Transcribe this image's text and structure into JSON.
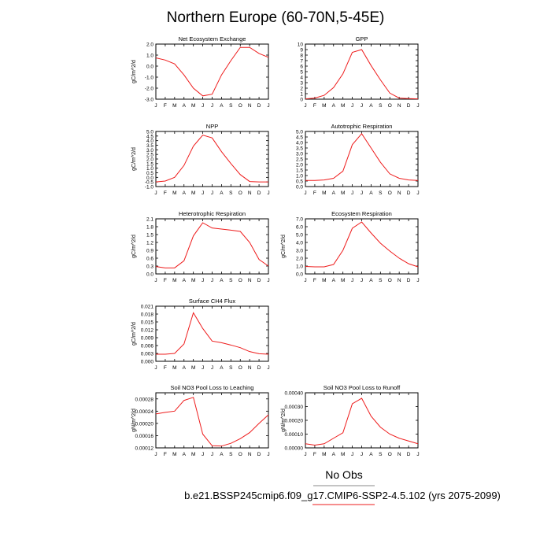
{
  "page": {
    "title": "Northern Europe (60-70N,5-45E)",
    "obs_label": "No Obs",
    "case_label": "b.e21.BSSP245cmip6.f09_g17.CMIP6-SSP2-4.5.102 (yrs 2075-2099)",
    "line_color": "#ee1c1c",
    "months": [
      "J",
      "F",
      "M",
      "A",
      "M",
      "J",
      "J",
      "A",
      "S",
      "O",
      "N",
      "D",
      "J"
    ]
  },
  "chart_data": [
    {
      "type": "line",
      "title": "Net Ecosystem Exchange",
      "ylabel": "gC/m^2/d",
      "ylim": [
        -3.0,
        2.0
      ],
      "yticks": [
        "-3.0",
        "-2.0",
        "-1.0",
        "0.0",
        "1.0",
        "2.0"
      ],
      "values": [
        0.75,
        0.55,
        0.2,
        -0.8,
        -2.0,
        -2.7,
        -2.55,
        -0.8,
        0.5,
        1.7,
        1.7,
        1.15,
        0.8
      ]
    },
    {
      "type": "line",
      "title": "GPP",
      "ylabel": "",
      "ylim": [
        0,
        10
      ],
      "yticks": [
        "0",
        "1",
        "2",
        "3",
        "4",
        "5",
        "6",
        "7",
        "8",
        "9",
        "10"
      ],
      "values": [
        0.05,
        0.2,
        0.7,
        2.1,
        4.6,
        8.5,
        9.0,
        6.1,
        3.5,
        1.1,
        0.2,
        0.1,
        0.05
      ]
    },
    {
      "type": "line",
      "title": "NPP",
      "ylabel": "gC/m^2/d",
      "ylim": [
        -1.0,
        5.0
      ],
      "yticks": [
        "-1.0",
        "-0.5",
        "0.0",
        "0.5",
        "1.0",
        "1.5",
        "2.0",
        "2.5",
        "3.0",
        "3.5",
        "4.0",
        "4.5",
        "5.0"
      ],
      "values": [
        -0.5,
        -0.4,
        0.0,
        1.3,
        3.4,
        4.6,
        4.3,
        2.8,
        1.5,
        0.3,
        -0.45,
        -0.5,
        -0.5
      ]
    },
    {
      "type": "line",
      "title": "Autotrophic Respiration",
      "ylabel": "",
      "ylim": [
        0.0,
        5.0
      ],
      "yticks": [
        "0.0",
        "0.5",
        "1.0",
        "1.5",
        "2.0",
        "2.5",
        "3.0",
        "3.5",
        "4.0",
        "4.5",
        "5.0"
      ],
      "values": [
        0.55,
        0.55,
        0.6,
        0.75,
        1.4,
        3.8,
        4.8,
        3.5,
        2.2,
        1.15,
        0.75,
        0.6,
        0.55
      ]
    },
    {
      "type": "line",
      "title": "Heterotrophic Respiration",
      "ylabel": "gC/m^2/d",
      "ylim": [
        0.0,
        2.1
      ],
      "yticks": [
        "0.0",
        "0.3",
        "0.6",
        "0.9",
        "1.2",
        "1.5",
        "1.8",
        "2.1"
      ],
      "values": [
        0.28,
        0.23,
        0.23,
        0.5,
        1.45,
        1.95,
        1.75,
        1.71,
        1.67,
        1.62,
        1.2,
        0.55,
        0.3
      ]
    },
    {
      "type": "line",
      "title": "Ecosystem Respiration",
      "ylabel": "gC/m^2/d",
      "ylim": [
        0.0,
        7.0
      ],
      "yticks": [
        "0.0",
        "1.0",
        "2.0",
        "3.0",
        "4.0",
        "5.0",
        "6.0",
        "7.0"
      ],
      "values": [
        0.95,
        0.9,
        0.9,
        1.2,
        3.0,
        5.8,
        6.6,
        5.2,
        3.9,
        2.9,
        2.0,
        1.3,
        0.9
      ]
    },
    {
      "type": "line",
      "title": "Surface CH4 Flux",
      "ylabel": "gC/m^2/d",
      "ylim": [
        0.0,
        0.021
      ],
      "yticks": [
        "0.000",
        "0.003",
        "0.006",
        "0.009",
        "0.012",
        "0.015",
        "0.018",
        "0.021"
      ],
      "values": [
        0.0027,
        0.0027,
        0.003,
        0.0066,
        0.0185,
        0.0125,
        0.0077,
        0.0071,
        0.0062,
        0.0052,
        0.0037,
        0.0029,
        0.0027
      ]
    },
    {
      "type": "line",
      "title": "Soil NO3 Pool Loss to Leaching",
      "ylabel": "gN/m^2/d",
      "ylim": [
        0.00012,
        0.0003
      ],
      "yticks": [
        "0.00012",
        "0.00016",
        "0.00020",
        "0.00024",
        "0.00028"
      ],
      "values": [
        0.000231,
        0.000236,
        0.00024,
        0.000275,
        0.000285,
        0.000165,
        0.000127,
        0.000126,
        0.000135,
        0.00015,
        0.00017,
        0.0002,
        0.000228
      ]
    },
    {
      "type": "line",
      "title": "Soil NO3 Pool Loss to Runoff",
      "ylabel": "gN/m^2/d",
      "ylim": [
        0.0,
        0.0004
      ],
      "yticks": [
        "0.00000",
        "0.00010",
        "0.00020",
        "0.00030",
        "0.00040"
      ],
      "values": [
        3e-05,
        2e-05,
        3e-05,
        7e-05,
        0.00011,
        0.00032,
        0.00036,
        0.00023,
        0.00015,
        0.0001,
        7e-05,
        5e-05,
        3e-05
      ]
    }
  ]
}
